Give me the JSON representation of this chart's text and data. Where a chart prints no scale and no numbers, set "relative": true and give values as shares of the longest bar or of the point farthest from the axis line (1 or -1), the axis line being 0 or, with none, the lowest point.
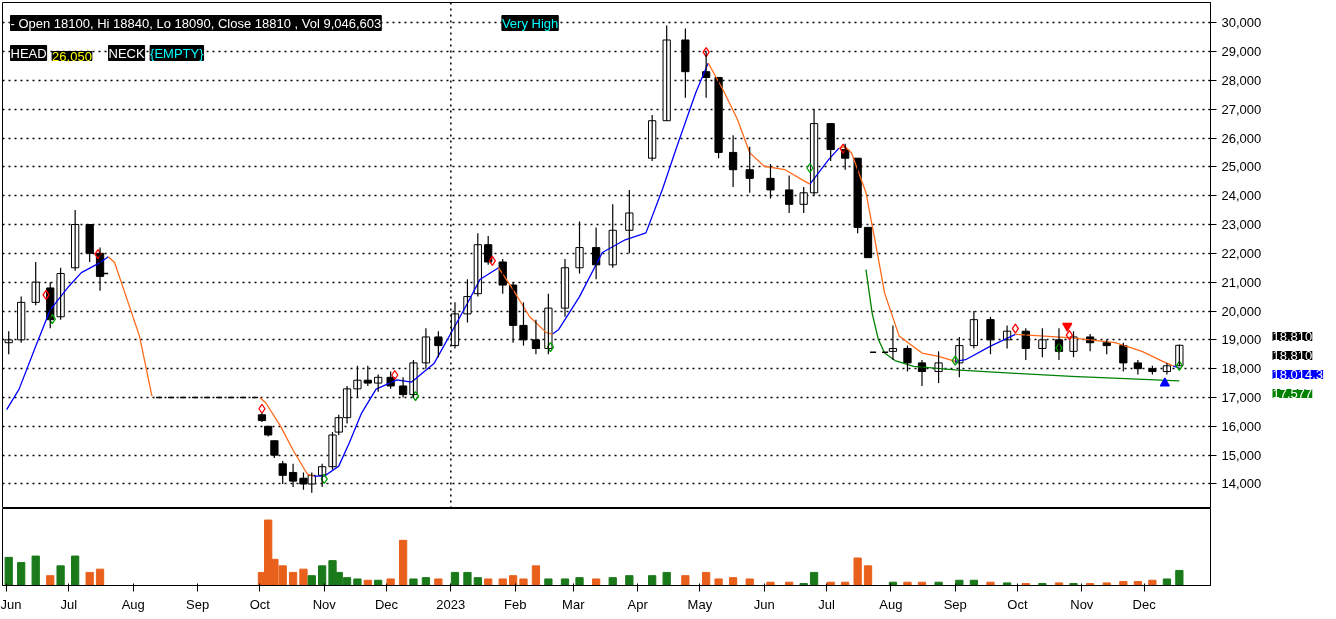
{
  "chart_data": [
    {
      "type": "candlestick",
      "x": [
        "2022-06-02",
        "2022-06-08",
        "2022-06-15",
        "2022-06-22",
        "2022-06-27",
        "2022-07-04",
        "2022-07-11",
        "2022-07-16",
        "2022-10-02",
        "2022-10-05",
        "2022-10-08",
        "2022-10-12",
        "2022-10-17",
        "2022-10-22",
        "2022-10-26",
        "2022-10-31",
        "2022-11-05",
        "2022-11-08",
        "2022-11-12",
        "2022-11-17",
        "2022-11-22",
        "2022-11-27",
        "2022-12-03",
        "2022-12-09",
        "2022-12-14",
        "2022-12-20",
        "2022-12-26",
        "2023-01-03",
        "2023-01-09",
        "2023-01-14",
        "2023-01-19",
        "2023-01-26",
        "2023-01-31",
        "2023-02-05",
        "2023-02-11",
        "2023-02-17",
        "2023-02-25",
        "2023-03-04",
        "2023-03-12",
        "2023-03-20",
        "2023-03-28",
        "2023-04-08",
        "2023-04-15",
        "2023-04-24",
        "2023-05-04",
        "2023-05-10",
        "2023-05-17",
        "2023-05-25",
        "2023-06-04",
        "2023-06-13",
        "2023-06-20",
        "2023-06-25",
        "2023-07-03",
        "2023-07-10",
        "2023-07-16",
        "2023-07-21",
        "2023-08-02",
        "2023-08-09",
        "2023-08-16",
        "2023-08-24",
        "2023-09-03",
        "2023-09-10",
        "2023-09-18",
        "2023-09-26",
        "2023-10-05",
        "2023-10-13",
        "2023-10-21",
        "2023-10-28",
        "2023-11-05",
        "2023-11-13",
        "2023-11-21",
        "2023-11-28",
        "2023-12-05",
        "2023-12-12",
        "2023-12-18"
      ],
      "ohlc": [
        [
          18900,
          19300,
          18500,
          19000
        ],
        [
          19000,
          20500,
          18900,
          20300
        ],
        [
          20300,
          21700,
          20200,
          21000
        ],
        [
          20800,
          21000,
          19400,
          19700
        ],
        [
          19800,
          21500,
          19700,
          21300
        ],
        [
          21500,
          23500,
          21400,
          23000
        ],
        [
          23000,
          23000,
          21700,
          22000
        ],
        [
          22000,
          22200,
          20700,
          21200
        ],
        [
          16400,
          16450,
          16150,
          16200
        ],
        [
          16000,
          16000,
          15650,
          15700
        ],
        [
          15500,
          15500,
          14900,
          15000
        ],
        [
          14700,
          14800,
          14000,
          14300
        ],
        [
          14400,
          14700,
          13900,
          14100
        ],
        [
          14200,
          14400,
          13800,
          14000
        ],
        [
          14000,
          14400,
          13700,
          14300
        ],
        [
          14300,
          14700,
          13900,
          14600
        ],
        [
          14600,
          15800,
          14500,
          15700
        ],
        [
          15800,
          16400,
          15700,
          16300
        ],
        [
          16300,
          17400,
          16100,
          17300
        ],
        [
          17300,
          18100,
          17000,
          17600
        ],
        [
          17600,
          18100,
          17400,
          17500
        ],
        [
          17500,
          17800,
          17200,
          17700
        ],
        [
          17700,
          17900,
          17300,
          17400
        ],
        [
          17400,
          17700,
          17000,
          17100
        ],
        [
          17100,
          18300,
          17000,
          18200
        ],
        [
          18200,
          19400,
          18000,
          19100
        ],
        [
          19100,
          19300,
          18400,
          18800
        ],
        [
          18800,
          20300,
          18700,
          19900
        ],
        [
          19900,
          21100,
          19600,
          20500
        ],
        [
          20600,
          22700,
          20500,
          22300
        ],
        [
          22300,
          22600,
          21600,
          21700
        ],
        [
          21700,
          21800,
          20600,
          20900
        ],
        [
          20900,
          21000,
          18900,
          19500
        ],
        [
          19500,
          20300,
          18800,
          19000
        ],
        [
          19000,
          19700,
          18500,
          18700
        ],
        [
          18700,
          20600,
          18500,
          20100
        ],
        [
          20100,
          21800,
          19800,
          21500
        ],
        [
          21500,
          23100,
          21300,
          22200
        ],
        [
          22200,
          22900,
          21100,
          21600
        ],
        [
          21600,
          23700,
          21500,
          22800
        ],
        [
          22800,
          24200,
          22000,
          23400
        ],
        [
          25300,
          26800,
          25200,
          26600
        ],
        [
          26600,
          29900,
          26600,
          29400
        ],
        [
          29400,
          29800,
          27400,
          28300
        ],
        [
          28300,
          29000,
          27400,
          28100
        ],
        [
          28100,
          28100,
          25300,
          25500
        ],
        [
          25500,
          26100,
          24300,
          24900
        ],
        [
          24900,
          25700,
          24100,
          24600
        ],
        [
          24600,
          25100,
          23900,
          24200
        ],
        [
          24200,
          24700,
          23400,
          23700
        ],
        [
          23700,
          24300,
          23400,
          24100
        ],
        [
          24100,
          27000,
          24000,
          26500
        ],
        [
          26500,
          26500,
          25200,
          25600
        ],
        [
          25600,
          25800,
          24900,
          25300
        ],
        [
          25300,
          25300,
          22700,
          22900
        ],
        [
          22900,
          22900,
          21850,
          21850
        ],
        [
          18600,
          19500,
          18300,
          18700
        ],
        [
          18700,
          18800,
          17900,
          18200
        ],
        [
          18200,
          18300,
          17400,
          17900
        ],
        [
          17900,
          18600,
          17500,
          18200
        ],
        [
          18200,
          19100,
          17700,
          18800
        ],
        [
          18800,
          20000,
          18700,
          19700
        ],
        [
          19700,
          19800,
          18500,
          19000
        ],
        [
          19000,
          19500,
          18700,
          19300
        ],
        [
          19300,
          19400,
          18300,
          18700
        ],
        [
          18700,
          19400,
          18400,
          19000
        ],
        [
          19000,
          19400,
          18300,
          18600
        ],
        [
          18600,
          19300,
          18400,
          19100
        ],
        [
          19100,
          19200,
          18600,
          18900
        ],
        [
          18900,
          19000,
          18500,
          18800
        ],
        [
          18800,
          18900,
          17900,
          18200
        ],
        [
          18200,
          18300,
          17800,
          18000
        ],
        [
          18000,
          18100,
          17800,
          17900
        ],
        [
          17900,
          18200,
          17800,
          18100
        ],
        [
          18100,
          18840,
          18090,
          18810
        ]
      ],
      "color": "#000000",
      "series": [
        {
          "type": "line",
          "color": "#0000ff",
          "x": [
            "2022-06-01",
            "2022-06-07",
            "2022-06-15",
            "2022-06-22",
            "2022-07-01",
            "2022-07-07",
            "2022-07-16",
            "2022-07-20"
          ],
          "values": [
            16580,
            17290,
            18780,
            20040,
            20860,
            21330,
            21680,
            21880
          ]
        },
        {
          "type": "line",
          "color": "#0000ff",
          "x": [
            "2022-10-27",
            "2022-11-01",
            "2022-11-08",
            "2022-11-13",
            "2022-11-19",
            "2022-11-26",
            "2022-12-06",
            "2022-12-13",
            "2022-12-24",
            "2023-01-03",
            "2023-01-09",
            "2023-01-15",
            "2023-01-24"
          ],
          "values": [
            14270,
            14270,
            14620,
            15410,
            16460,
            17290,
            17610,
            17530,
            18190,
            19480,
            20270,
            21090,
            21500
          ]
        },
        {
          "type": "line",
          "color": "#0000ff",
          "x": [
            "2023-02-19",
            "2023-02-22",
            "2023-03-04",
            "2023-03-15",
            "2023-03-26",
            "2023-04-05",
            "2023-04-13",
            "2023-04-20",
            "2023-04-29",
            "2023-05-05"
          ],
          "values": [
            19200,
            19360,
            20500,
            22030,
            22470,
            22710,
            24230,
            25720,
            27570,
            28600
          ]
        },
        {
          "type": "line",
          "color": "#0000ff",
          "x": [
            "2023-06-23",
            "2023-07-02",
            "2023-07-07"
          ],
          "values": [
            24400,
            25250,
            25650
          ]
        },
        {
          "type": "line",
          "color": "#0000ff",
          "x": [
            "2023-09-01",
            "2023-09-06",
            "2023-09-18",
            "2023-09-30"
          ],
          "values": [
            18250,
            18310,
            18780,
            19190
          ]
        },
        {
          "type": "line",
          "color": "#0000ff",
          "x": [
            "2023-12-15",
            "2023-12-18"
          ],
          "values": [
            18100,
            18014.3
          ]
        },
        {
          "type": "line",
          "color": "#ff6a1a",
          "x": [
            "2022-07-20",
            "2022-07-23",
            "2022-07-28",
            "2022-08-04",
            "2022-08-10"
          ],
          "values": [
            21880,
            21680,
            20620,
            19130,
            17050
          ]
        },
        {
          "type": "line",
          "color": "#ff6a1a",
          "x": [
            "2022-10-01",
            "2022-10-04",
            "2022-10-11",
            "2022-10-17",
            "2022-10-24",
            "2022-10-27"
          ],
          "values": [
            17000,
            16800,
            16000,
            15170,
            14330,
            14270
          ]
        },
        {
          "type": "line",
          "color": "#ff6a1a",
          "x": [
            "2023-01-24",
            "2023-01-31",
            "2023-02-08",
            "2023-02-16",
            "2023-02-19"
          ],
          "values": [
            21500,
            20740,
            19800,
            19250,
            19200
          ]
        },
        {
          "type": "line",
          "color": "#ff6a1a",
          "x": [
            "2023-05-05",
            "2023-05-12",
            "2023-05-19",
            "2023-05-25",
            "2023-06-01",
            "2023-06-11",
            "2023-06-20",
            "2023-06-23"
          ],
          "values": [
            28600,
            27690,
            26660,
            25490,
            25020,
            24900,
            24520,
            24400
          ]
        },
        {
          "type": "line",
          "color": "#ff6a1a",
          "x": [
            "2023-07-07",
            "2023-07-10",
            "2023-07-13",
            "2023-07-20",
            "2023-07-24",
            "2023-07-29",
            "2023-08-05",
            "2023-08-16",
            "2023-08-24",
            "2023-09-01"
          ],
          "values": [
            25650,
            25700,
            25490,
            24110,
            22590,
            20620,
            19130,
            18540,
            18430,
            18250
          ]
        },
        {
          "type": "line",
          "color": "#ff6a1a",
          "x": [
            "2023-09-30",
            "2023-10-14",
            "2023-10-27",
            "2023-11-17",
            "2023-11-30",
            "2023-12-10",
            "2023-12-15"
          ],
          "values": [
            19190,
            19130,
            19070,
            18900,
            18600,
            18250,
            18100
          ]
        },
        {
          "type": "line",
          "color": "#008000",
          "x": [
            "2023-07-20",
            "2023-07-23",
            "2023-07-26",
            "2023-07-29",
            "2023-08-03",
            "2023-08-12",
            "2023-09-01",
            "2023-09-30",
            "2023-10-27",
            "2023-12-18"
          ],
          "values": [
            21440,
            19920,
            19010,
            18540,
            18280,
            18080,
            17960,
            17840,
            17730,
            17577
          ]
        },
        {
          "type": "line",
          "color": "#000000",
          "line_style": "dashed",
          "x": [
            "2022-07-17",
            "2022-07-20"
          ],
          "values": [
            21300,
            21300
          ]
        },
        {
          "type": "line",
          "color": "#000000",
          "line_style": "dashed",
          "x": [
            "2022-08-12",
            "2022-10-01"
          ],
          "values": [
            17000,
            17000
          ]
        },
        {
          "type": "line",
          "color": "#000000",
          "line_style": "dashed",
          "x": [
            "2023-07-22",
            "2023-08-01"
          ],
          "values": [
            18570,
            18570
          ]
        },
        {
          "type": "scatter",
          "color": "#ff0000",
          "marker": "diamond",
          "x": [
            "2022-06-20",
            "2022-07-15",
            "2022-10-02",
            "2022-12-05",
            "2023-01-21",
            "2023-05-04",
            "2023-07-09",
            "2023-09-30",
            "2023-10-26"
          ],
          "values": [
            20560,
            21970,
            16610,
            17780,
            21740,
            28980,
            25630,
            19390,
            19160
          ]
        },
        {
          "type": "scatter",
          "color": "#00a000",
          "marker": "diamond",
          "x": [
            "2022-06-23",
            "2022-11-01",
            "2022-12-15",
            "2023-02-18",
            "2023-06-23",
            "2023-09-01",
            "2023-10-21",
            "2023-12-18"
          ],
          "values": [
            19720,
            14180,
            17050,
            18750,
            24960,
            18280,
            18720,
            18100
          ]
        },
        {
          "type": "scatter",
          "color": "#ff0000",
          "x": [
            "2023-10-25"
          ],
          "values": [
            19480
          ]
        },
        {
          "type": "scatter",
          "color": "#0000ff",
          "marker": "triangle",
          "x": [
            "2023-12-11"
          ],
          "values": [
            17490
          ]
        }
      ],
      "xlim": [
        "2022-05-30",
        "2024-01-02"
      ],
      "ylim": [
        13150,
        30700
      ],
      "yticks": [
        {
          "value": 14000,
          "label": "14,000"
        },
        {
          "value": 15000,
          "label": "15,000"
        },
        {
          "value": 16000,
          "label": "16,000"
        },
        {
          "value": 17000,
          "label": "17,000"
        },
        {
          "value": 18000,
          "label": "18,000"
        },
        {
          "value": 19000,
          "label": "19,000"
        },
        {
          "value": 20000,
          "label": "20,000"
        },
        {
          "value": 21000,
          "label": "21,000"
        },
        {
          "value": 22000,
          "label": "22,000"
        },
        {
          "value": 23000,
          "label": "23,000"
        },
        {
          "value": 24000,
          "label": "24,000"
        },
        {
          "value": 25000,
          "label": "25,000"
        },
        {
          "value": 26000,
          "label": "26,000"
        },
        {
          "value": 27000,
          "label": "27,000"
        },
        {
          "value": 28000,
          "label": "28,000"
        },
        {
          "value": 29000,
          "label": "29,000"
        },
        {
          "value": 30000,
          "label": "30,000"
        }
      ],
      "grid": "y",
      "ref_lines": [
        {
          "axis": "x",
          "value": "2023-01-01",
          "label": null,
          "color": "#000000",
          "line_style": "dotted"
        }
      ],
      "tick_labels": "y",
      "annotations": [
        "- Open 18100, Hi 18840, Lo 18090, Close 18810 , Vol 9,046,603",
        "Very High",
        "HEAD",
        "26,050",
        "NECK",
        "{EMPTY}",
        "18,810",
        "18,810",
        "18,014.3",
        "17,577"
      ]
    },
    {
      "type": "bar",
      "relative": true,
      "tick_labels": "x",
      "x": [
        "2022-06-02",
        "2022-06-08",
        "2022-06-15",
        "2022-06-22",
        "2022-06-27",
        "2022-07-04",
        "2022-07-11",
        "2022-07-16",
        "2022-10-02",
        "2022-10-05",
        "2022-10-08",
        "2022-10-12",
        "2022-10-17",
        "2022-10-22",
        "2022-10-26",
        "2022-10-31",
        "2022-11-05",
        "2022-11-08",
        "2022-11-12",
        "2022-11-17",
        "2022-11-22",
        "2022-11-27",
        "2022-12-03",
        "2022-12-09",
        "2022-12-14",
        "2022-12-20",
        "2022-12-26",
        "2023-01-03",
        "2023-01-09",
        "2023-01-14",
        "2023-01-19",
        "2023-01-26",
        "2023-01-31",
        "2023-02-05",
        "2023-02-11",
        "2023-02-17",
        "2023-02-25",
        "2023-03-04",
        "2023-03-12",
        "2023-03-20",
        "2023-03-28",
        "2023-04-08",
        "2023-04-15",
        "2023-04-24",
        "2023-05-04",
        "2023-05-10",
        "2023-05-17",
        "2023-05-25",
        "2023-06-04",
        "2023-06-13",
        "2023-06-20",
        "2023-06-25",
        "2023-07-03",
        "2023-07-10",
        "2023-07-16",
        "2023-07-21",
        "2023-08-02",
        "2023-08-09",
        "2023-08-16",
        "2023-08-24",
        "2023-09-03",
        "2023-09-10",
        "2023-09-18",
        "2023-09-26",
        "2023-10-05",
        "2023-10-13",
        "2023-10-21",
        "2023-10-28",
        "2023-11-05",
        "2023-11-13",
        "2023-11-21",
        "2023-11-28",
        "2023-12-05",
        "2023-12-12",
        "2023-12-18"
      ],
      "values": [
        0.43,
        0.35,
        0.45,
        0.15,
        0.3,
        0.45,
        0.2,
        0.25,
        0.2,
        1,
        0.4,
        0.3,
        0.2,
        0.25,
        0.15,
        0.3,
        0.38,
        0.2,
        0.12,
        0.1,
        0.08,
        0.08,
        0.1,
        0.69,
        0.1,
        0.12,
        0.1,
        0.2,
        0.2,
        0.12,
        0.1,
        0.1,
        0.15,
        0.1,
        0.3,
        0.1,
        0.1,
        0.12,
        0.1,
        0.12,
        0.15,
        0.15,
        0.2,
        0.15,
        0.2,
        0.1,
        0.12,
        0.1,
        0.05,
        0.05,
        0.03,
        0.2,
        0.05,
        0.05,
        0.42,
        0.3,
        0.05,
        0.05,
        0.05,
        0.05,
        0.08,
        0.08,
        0.05,
        0.04,
        0.03,
        0.03,
        0.04,
        0.03,
        0.03,
        0.04,
        0.06,
        0.06,
        0.08,
        0.1,
        0.23
      ],
      "colors": [
        "#1a7a1a",
        "#1a7a1a",
        "#1a7a1a",
        "#e8601c",
        "#1a7a1a",
        "#1a7a1a",
        "#e8601c",
        "#e8601c",
        "#e8601c",
        "#e8601c",
        "#e8601c",
        "#e8601c",
        "#e8601c",
        "#e8601c",
        "#1a7a1a",
        "#1a7a1a",
        "#1a7a1a",
        "#1a7a1a",
        "#1a7a1a",
        "#1a7a1a",
        "#e8601c",
        "#1a7a1a",
        "#e8601c",
        "#e8601c",
        "#1a7a1a",
        "#1a7a1a",
        "#e8601c",
        "#1a7a1a",
        "#1a7a1a",
        "#1a7a1a",
        "#e8601c",
        "#e8601c",
        "#e8601c",
        "#e8601c",
        "#e8601c",
        "#1a7a1a",
        "#1a7a1a",
        "#1a7a1a",
        "#e8601c",
        "#1a7a1a",
        "#1a7a1a",
        "#1a7a1a",
        "#1a7a1a",
        "#e8601c",
        "#e8601c",
        "#e8601c",
        "#e8601c",
        "#e8601c",
        "#e8601c",
        "#e8601c",
        "#1a7a1a",
        "#1a7a1a",
        "#e8601c",
        "#e8601c",
        "#e8601c",
        "#e8601c",
        "#1a7a1a",
        "#e8601c",
        "#e8601c",
        "#1a7a1a",
        "#1a7a1a",
        "#1a7a1a",
        "#e8601c",
        "#1a7a1a",
        "#e8601c",
        "#1a7a1a",
        "#e8601c",
        "#1a7a1a",
        "#e8601c",
        "#e8601c",
        "#e8601c",
        "#e8601c",
        "#e8601c",
        "#1a7a1a",
        "#1a7a1a"
      ],
      "xlim": [
        "2022-05-30",
        "2024-01-02"
      ],
      "xticks": [
        {
          "value": "2022-06-01",
          "label": "Jun"
        },
        {
          "value": "2022-07-01",
          "label": "Jul"
        },
        {
          "value": "2022-08-01",
          "label": "Aug"
        },
        {
          "value": "2022-09-01",
          "label": "Sep"
        },
        {
          "value": "2022-10-01",
          "label": "Oct"
        },
        {
          "value": "2022-11-01",
          "label": "Nov"
        },
        {
          "value": "2022-12-01",
          "label": "Dec"
        },
        {
          "value": "2023-01-01",
          "label": "2023"
        },
        {
          "value": "2023-02-01",
          "label": "Feb"
        },
        {
          "value": "2023-03-01",
          "label": "Mar"
        },
        {
          "value": "2023-04-01",
          "label": "Apr"
        },
        {
          "value": "2023-05-01",
          "label": "May"
        },
        {
          "value": "2023-06-01",
          "label": "Jun"
        },
        {
          "value": "2023-07-01",
          "label": "Jul"
        },
        {
          "value": "2023-08-01",
          "label": "Aug"
        },
        {
          "value": "2023-09-01",
          "label": "Sep"
        },
        {
          "value": "2023-10-01",
          "label": "Oct"
        },
        {
          "value": "2023-11-01",
          "label": "Nov"
        },
        {
          "value": "2023-12-01",
          "label": "Dec"
        }
      ]
    }
  ]
}
